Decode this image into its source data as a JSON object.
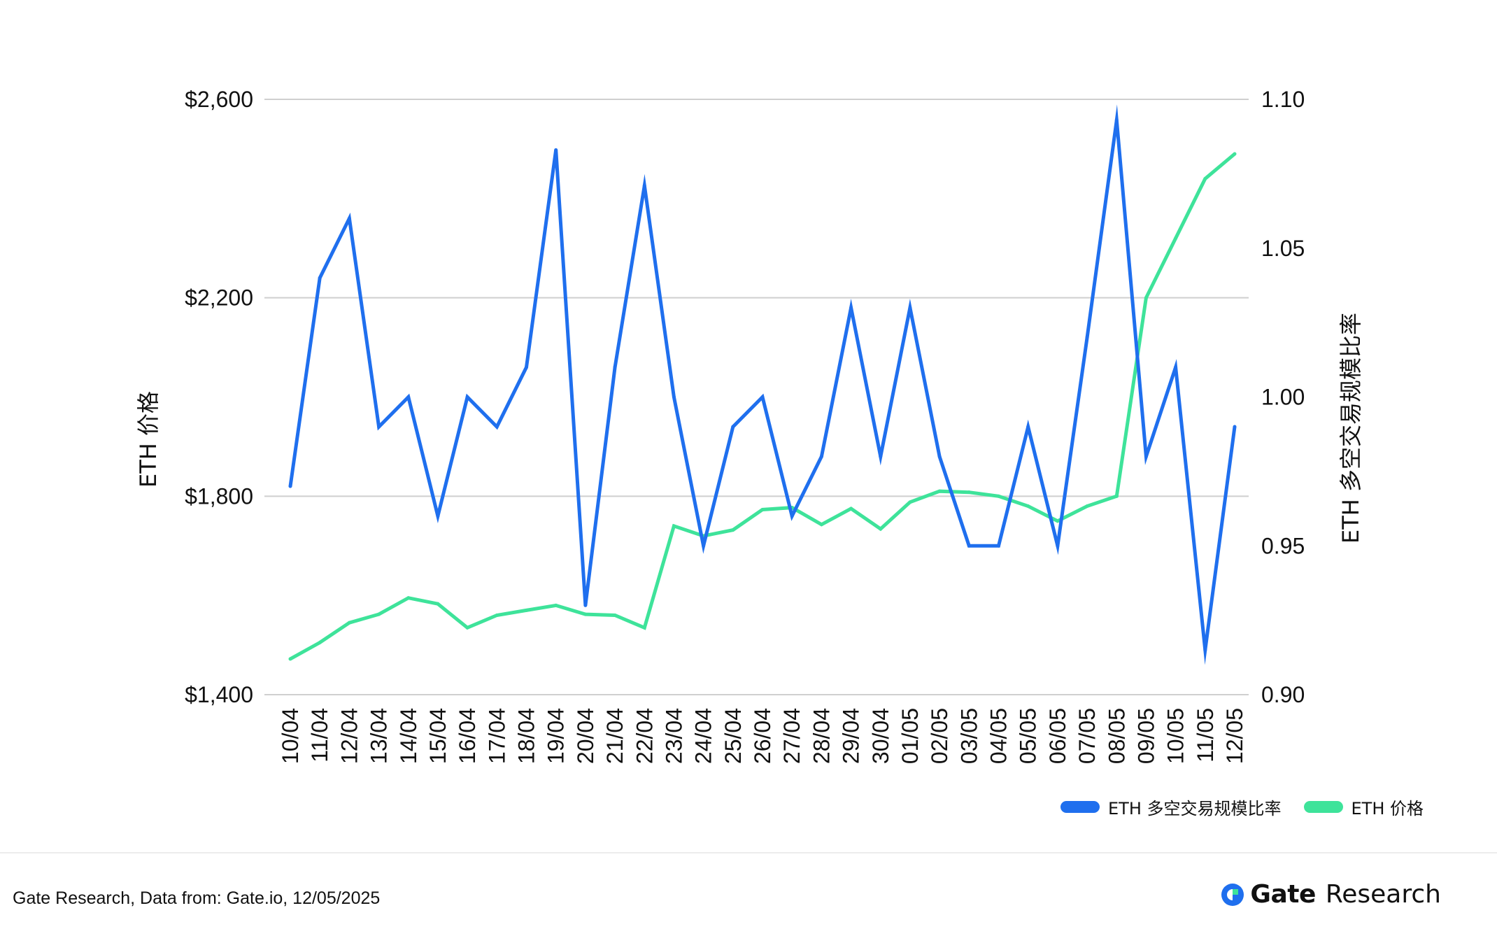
{
  "chart_data": {
    "type": "line",
    "categories": [
      "10/04",
      "11/04",
      "12/04",
      "13/04",
      "14/04",
      "15/04",
      "16/04",
      "17/04",
      "18/04",
      "19/04",
      "20/04",
      "21/04",
      "22/04",
      "23/04",
      "24/04",
      "25/04",
      "26/04",
      "27/04",
      "28/04",
      "29/04",
      "30/04",
      "01/05",
      "02/05",
      "03/05",
      "04/05",
      "05/05",
      "06/05",
      "07/05",
      "08/05",
      "09/05",
      "10/05",
      "11/05",
      "12/05"
    ],
    "y_left": {
      "label": "ETH 价格",
      "ylim": [
        1400,
        2600
      ],
      "ticks": [
        1400,
        1800,
        2200,
        2600
      ],
      "tick_labels": [
        "$1,400",
        "$1,800",
        "$2,200",
        "$2,600"
      ]
    },
    "y_right": {
      "label": "ETH 多空交易规模比率",
      "ylim": [
        0.9,
        1.1
      ],
      "ticks": [
        0.9,
        0.95,
        1.0,
        1.05,
        1.1
      ],
      "tick_labels": [
        "0.90",
        "0.95",
        "1.00",
        "1.05",
        "1.10"
      ]
    },
    "series": [
      {
        "name": "ETH 多空交易规模比率",
        "axis": "right",
        "color": "#1f6fee",
        "values": [
          0.97,
          1.04,
          1.06,
          0.99,
          1.0,
          0.96,
          1.0,
          0.99,
          1.01,
          1.083,
          0.93,
          1.01,
          1.071,
          1.0,
          0.95,
          0.99,
          1.0,
          0.96,
          0.98,
          1.03,
          0.98,
          1.03,
          0.98,
          0.95,
          0.95,
          0.99,
          0.95,
          1.02,
          1.093,
          0.98,
          1.01,
          0.915,
          0.99
        ]
      },
      {
        "name": "ETH 价格",
        "axis": "left",
        "color": "#3ee39a",
        "values": [
          1472,
          1505,
          1545,
          1562,
          1595,
          1583,
          1535,
          1560,
          1570,
          1580,
          1562,
          1560,
          1535,
          1740,
          1720,
          1732,
          1773,
          1777,
          1743,
          1775,
          1734,
          1788,
          1810,
          1808,
          1800,
          1780,
          1750,
          1780,
          1800,
          2200,
          2320,
          2440,
          2490
        ]
      }
    ],
    "grid": true,
    "legend_position": "bottom-right"
  },
  "footer": {
    "source": "Gate Research, Data from: Gate.io, 12/05/2025",
    "brand_name": "Gate",
    "brand_suffix": "Research"
  },
  "colors": {
    "brand": "#1f6fee",
    "ratio_line": "#1f6fee",
    "price_line": "#3ee39a",
    "grid": "#cfcfcf"
  }
}
